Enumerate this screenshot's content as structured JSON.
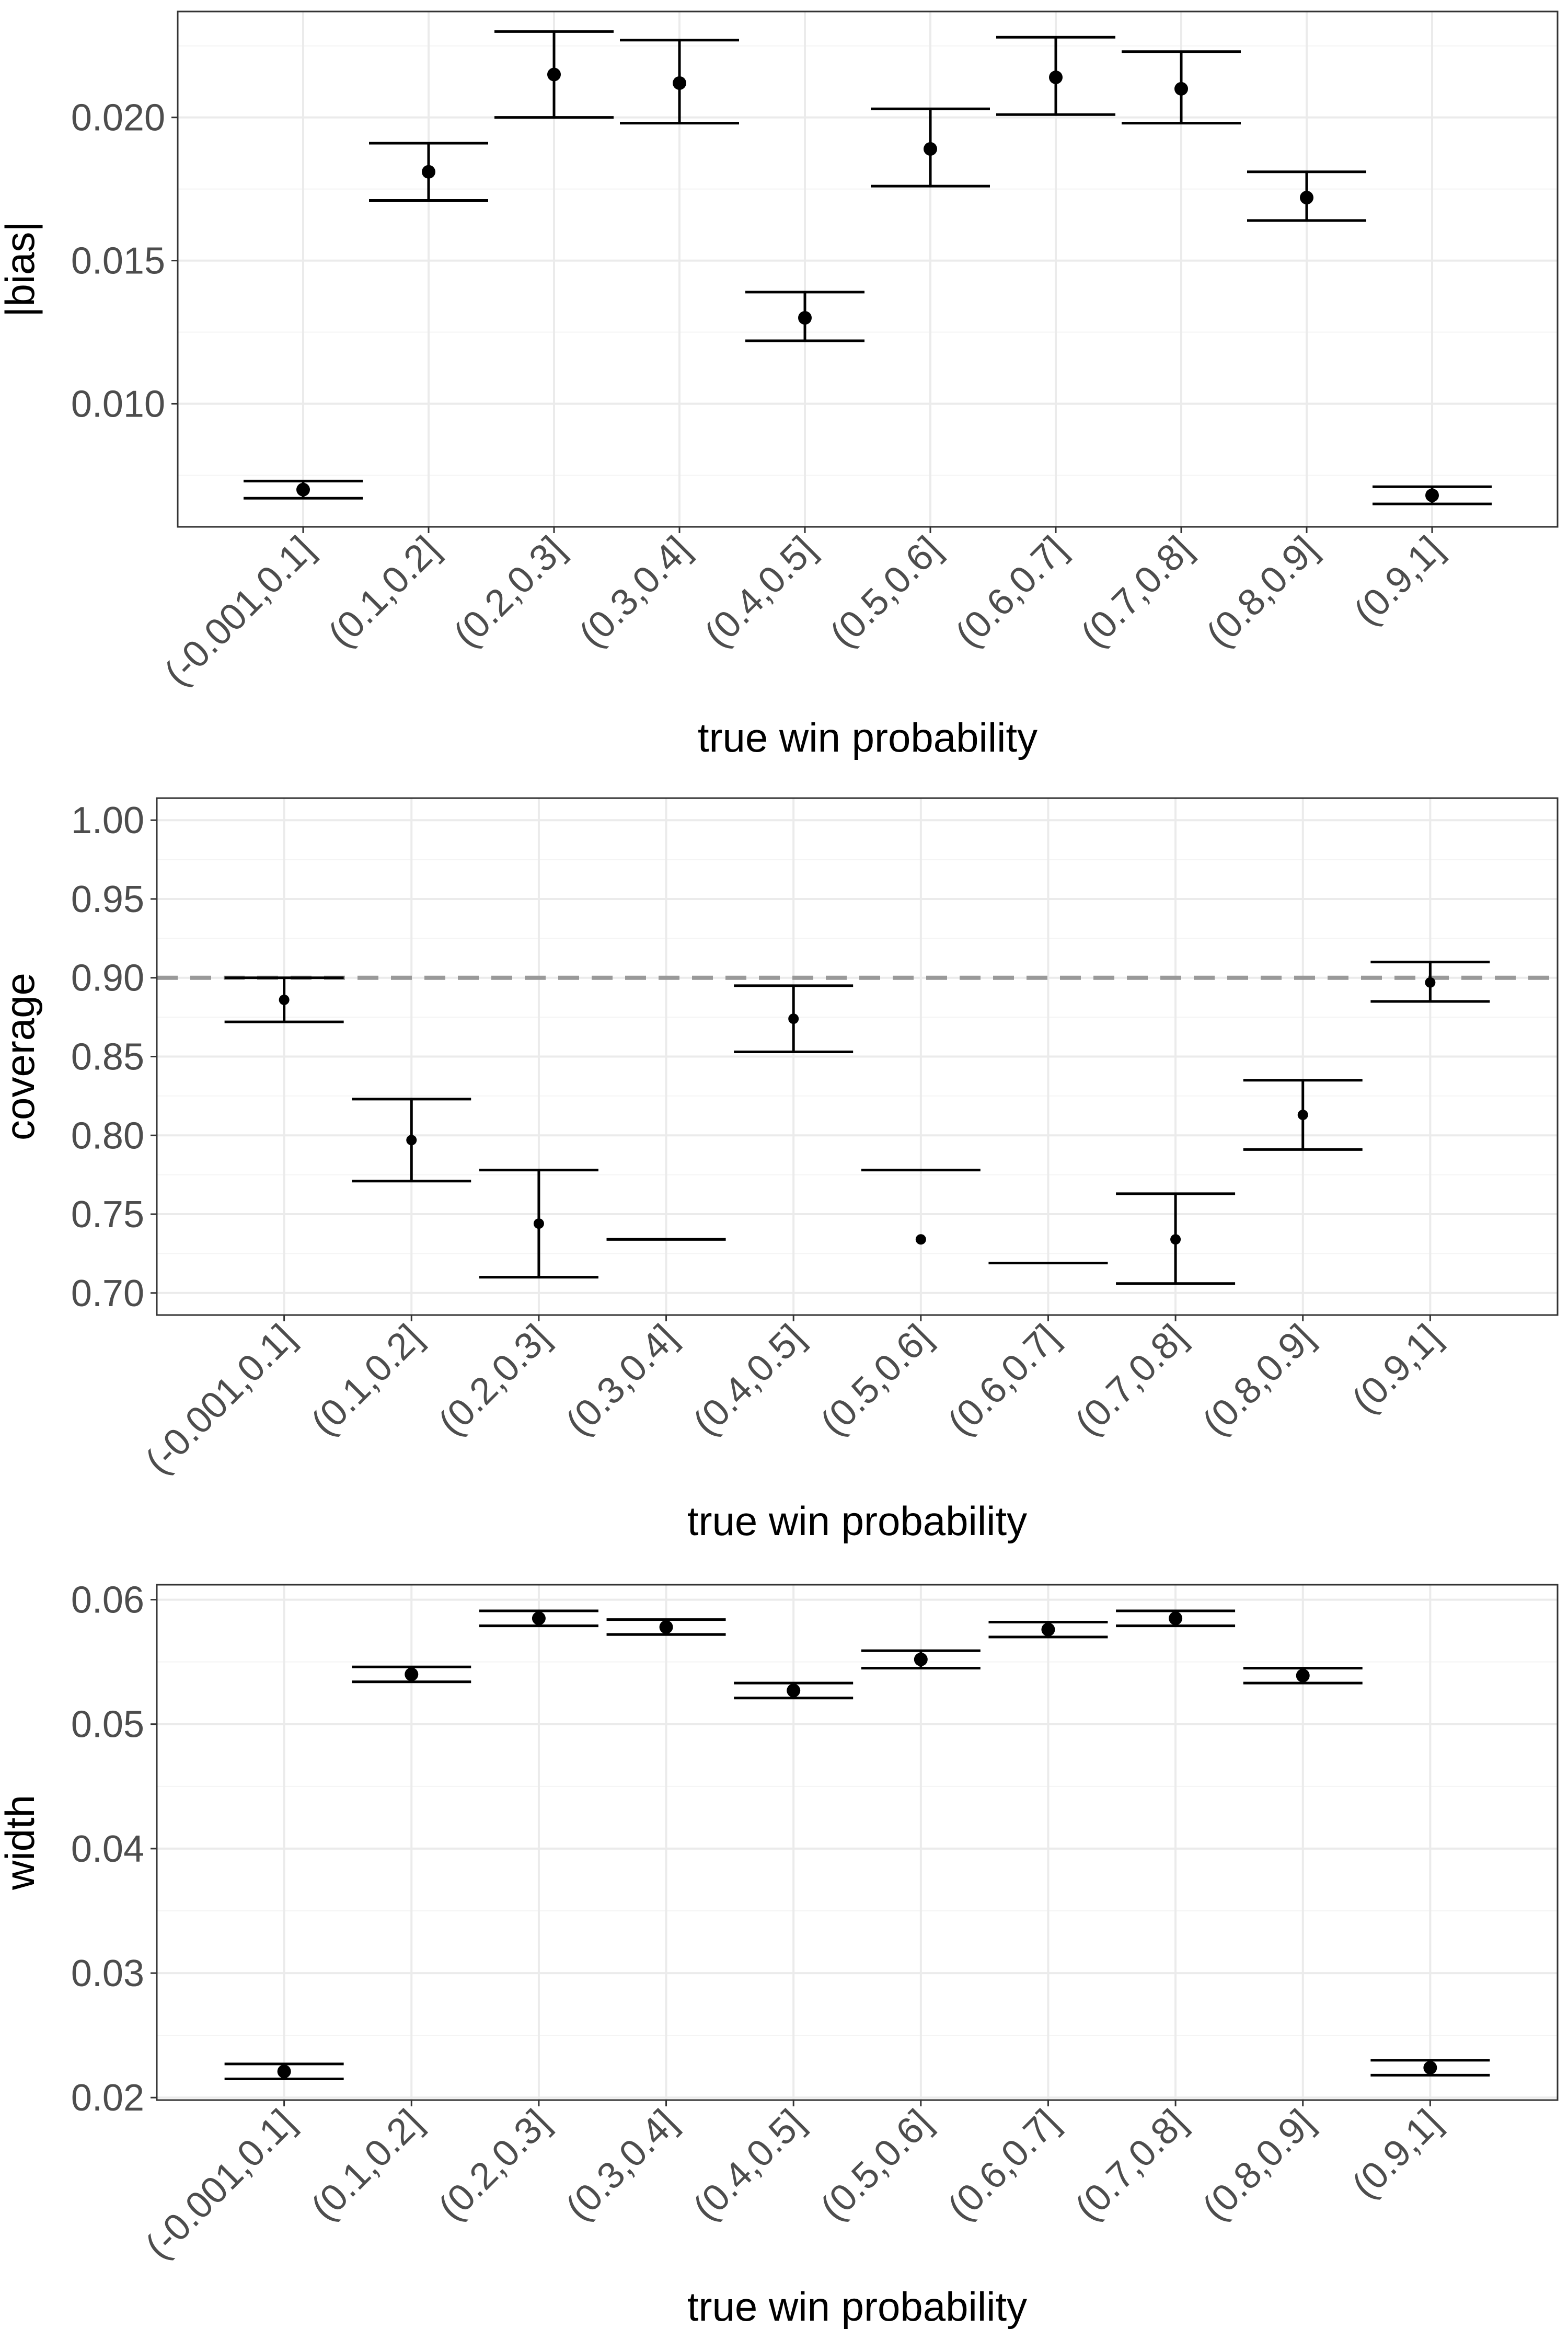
{
  "chart_data": [
    {
      "type": "errorbar",
      "xlabel": "true win probability",
      "ylabel": "|bias|",
      "categories": [
        "(-0.001,0.1]",
        "(0.1,0.2]",
        "(0.2,0.3]",
        "(0.3,0.4]",
        "(0.4,0.5]",
        "(0.5,0.6]",
        "(0.6,0.7]",
        "(0.7,0.8]",
        "(0.8,0.9]",
        "(0.9,1]"
      ],
      "values": [
        0.007,
        0.0181,
        0.0215,
        0.0212,
        0.013,
        0.0189,
        0.0214,
        0.021,
        0.0172,
        0.0068
      ],
      "lower": [
        0.0067,
        0.0171,
        0.02,
        0.0198,
        0.0122,
        0.0176,
        0.0201,
        0.0198,
        0.0164,
        0.0065
      ],
      "upper": [
        0.0073,
        0.0191,
        0.023,
        0.0227,
        0.0139,
        0.0203,
        0.0228,
        0.0223,
        0.0181,
        0.0071
      ],
      "ylim": [
        0.0057,
        0.0237
      ],
      "yticks": [
        0.01,
        0.015,
        0.02
      ],
      "ytick_labels": [
        "0.010",
        "0.015",
        "0.020"
      ],
      "grid": true,
      "reference_line": null
    },
    {
      "type": "errorbar",
      "xlabel": "true win probability",
      "ylabel": "coverage",
      "categories": [
        "(-0.001,0.1]",
        "(0.1,0.2]",
        "(0.2,0.3]",
        "(0.3,0.4]",
        "(0.4,0.5]",
        "(0.5,0.6]",
        "(0.6,0.7]",
        "(0.7,0.8]",
        "(0.8,0.9]",
        "(0.9,1]"
      ],
      "values": [
        0.886,
        0.797,
        0.744,
        null,
        0.874,
        0.734,
        null,
        0.734,
        0.813,
        0.897
      ],
      "lower": [
        0.872,
        0.771,
        0.71,
        0.734,
        0.853,
        null,
        0.719,
        0.706,
        0.791,
        0.885
      ],
      "upper": [
        0.9,
        0.823,
        0.778,
        0.734,
        0.895,
        0.778,
        0.719,
        0.763,
        0.835,
        0.91
      ],
      "ylim": [
        0.686,
        1.014
      ],
      "yticks": [
        0.7,
        0.75,
        0.8,
        0.85,
        0.9,
        0.95,
        1.0
      ],
      "ytick_labels": [
        "0.70",
        "0.75",
        "0.80",
        "0.85",
        "0.90",
        "0.95",
        "1.00"
      ],
      "grid": true,
      "reference_line": 0.9
    },
    {
      "type": "errorbar",
      "xlabel": "true win probability",
      "ylabel": "width",
      "categories": [
        "(-0.001,0.1]",
        "(0.1,0.2]",
        "(0.2,0.3]",
        "(0.3,0.4]",
        "(0.4,0.5]",
        "(0.5,0.6]",
        "(0.6,0.7]",
        "(0.7,0.8]",
        "(0.8,0.9]",
        "(0.9,1]"
      ],
      "values": [
        0.0221,
        0.054,
        0.0585,
        0.0578,
        0.0527,
        0.0552,
        0.0576,
        0.0585,
        0.0539,
        0.0224
      ],
      "lower": [
        0.0215,
        0.0534,
        0.0579,
        0.0572,
        0.0521,
        0.0545,
        0.057,
        0.0579,
        0.0533,
        0.0218
      ],
      "upper": [
        0.0227,
        0.0546,
        0.0591,
        0.0584,
        0.0533,
        0.0559,
        0.0582,
        0.0591,
        0.0545,
        0.023
      ],
      "ylim": [
        0.0198,
        0.0612
      ],
      "yticks": [
        0.02,
        0.03,
        0.04,
        0.05,
        0.06
      ],
      "ytick_labels": [
        "0.02",
        "0.03",
        "0.04",
        "0.05",
        "0.06"
      ],
      "grid": true,
      "reference_line": null
    }
  ]
}
